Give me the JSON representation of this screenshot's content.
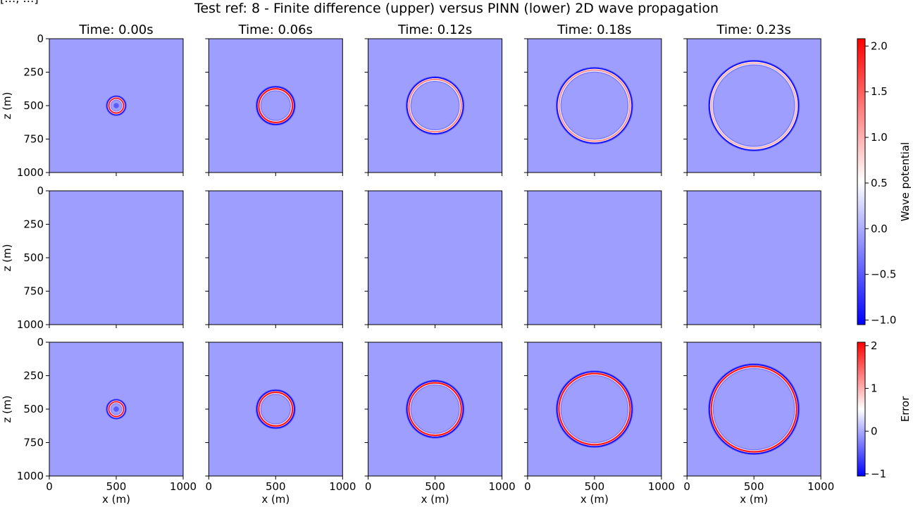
{
  "figure": {
    "corner_label": "[…, …]",
    "title": "Test ref: 8 - Finite difference (upper) versus PINN (lower) 2D wave propagation"
  },
  "chart_data": {
    "type": "heatmap",
    "title": "Test ref: 8 - Finite difference (upper) versus PINN (lower) 2D wave propagation",
    "layout": {
      "rows": 3,
      "columns": 5
    },
    "panel_titles": [
      "Time: 0.00s",
      "Time: 0.06s",
      "Time: 0.12s",
      "Time: 0.18s",
      "Time: 0.23s"
    ],
    "times_s": [
      0.0,
      0.06,
      0.12,
      0.18,
      0.23
    ],
    "xlabel": "x (m)",
    "ylabel": "z (m)",
    "xlim": [
      0,
      1000
    ],
    "ylim": [
      1000,
      0
    ],
    "x_ticks": [
      0,
      500,
      1000
    ],
    "y_ticks": [
      0,
      250,
      500,
      750,
      1000
    ],
    "source_m": {
      "x": 500,
      "z": 500
    },
    "rows": [
      {
        "name": "Finite difference",
        "colormap": "bwr",
        "vmin": -1.05,
        "vmax": 2.08,
        "background": -0.08,
        "ring_radius_m": [
          55,
          125,
          195,
          265,
          318
        ],
        "ring_amplitude": [
          2.0,
          2.0,
          1.3,
          1.2,
          1.0
        ]
      },
      {
        "name": "PINN",
        "colormap": "bwr",
        "vmin": -1.05,
        "vmax": 2.08,
        "background": -0.08,
        "ring_radius_m": [],
        "ring_amplitude": []
      },
      {
        "name": "Error",
        "colormap": "bwr",
        "vmin": -1.05,
        "vmax": 2.08,
        "background": -0.08,
        "ring_radius_m": [
          55,
          125,
          195,
          265,
          318
        ],
        "ring_amplitude": [
          2.0,
          2.0,
          2.0,
          2.0,
          2.0
        ]
      }
    ],
    "colorbars": [
      {
        "label": "Wave potential",
        "min": -1.05,
        "max": 2.08,
        "ticks": [
          -1.0,
          -0.5,
          0.0,
          0.5,
          1.0,
          1.5,
          2.0
        ],
        "tick_labels": [
          "−1.0",
          "−0.5",
          "0.0",
          "0.5",
          "1.0",
          "1.5",
          "2.0"
        ]
      },
      {
        "label": "Error",
        "min": -1.05,
        "max": 2.08,
        "ticks": [
          -1,
          0,
          1,
          2
        ],
        "tick_labels": [
          "−1",
          "0",
          "1",
          "2"
        ]
      }
    ]
  }
}
